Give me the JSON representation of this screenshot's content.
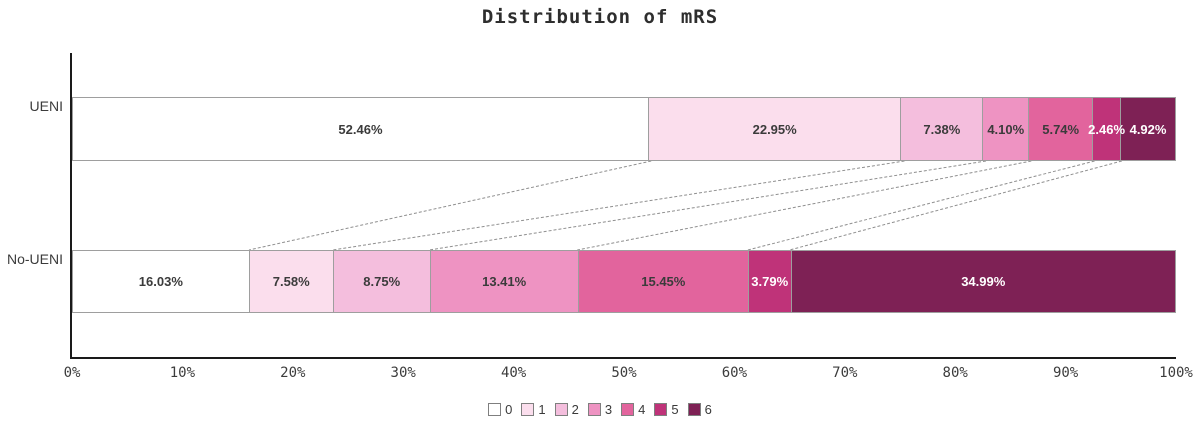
{
  "title": "Distribution of mRS",
  "chart_data": {
    "type": "bar",
    "stacked": true,
    "orientation": "horizontal",
    "title": "Distribution of mRS",
    "categories": [
      "UENI",
      "No-UENI"
    ],
    "series": [
      {
        "name": "0",
        "color": "#ffffff",
        "label_color": "#3b3b3b",
        "values": [
          52.46,
          16.03
        ]
      },
      {
        "name": "1",
        "color": "#fbdeed",
        "label_color": "#3b3b3b",
        "values": [
          22.95,
          7.58
        ]
      },
      {
        "name": "2",
        "color": "#f4bedd",
        "label_color": "#3b3b3b",
        "values": [
          7.38,
          8.75
        ]
      },
      {
        "name": "3",
        "color": "#ee93c2",
        "label_color": "#3b3b3b",
        "values": [
          4.1,
          13.41
        ]
      },
      {
        "name": "4",
        "color": "#e2649d",
        "label_color": "#3b3b3b",
        "values": [
          5.74,
          15.45
        ]
      },
      {
        "name": "5",
        "color": "#bf3379",
        "label_color": "#ffffff",
        "values": [
          2.46,
          3.79
        ]
      },
      {
        "name": "6",
        "color": "#7e2155",
        "label_color": "#ffffff",
        "values": [
          4.92,
          34.99
        ]
      }
    ],
    "segment_labels": [
      [
        "52.46%",
        "22.95%",
        "7.38%",
        "4.10%",
        "5.74%",
        "2.46%",
        "4.92%"
      ],
      [
        "16.03%",
        "7.58%",
        "8.75%",
        "13.41%",
        "15.45%",
        "3.79%",
        "34.99%"
      ]
    ],
    "x_ticks": [
      "0%",
      "10%",
      "20%",
      "30%",
      "40%",
      "50%",
      "60%",
      "70%",
      "80%",
      "90%",
      "100%"
    ],
    "xlim": [
      0,
      100
    ],
    "grid": false,
    "legend_entries": [
      "0",
      "1",
      "2",
      "3",
      "4",
      "5",
      "6"
    ],
    "legend_position": "bottom",
    "connector_line_color": "#8f8f8f",
    "axis_color": "#1a1a1a",
    "border_color": "#9e9e9e"
  }
}
